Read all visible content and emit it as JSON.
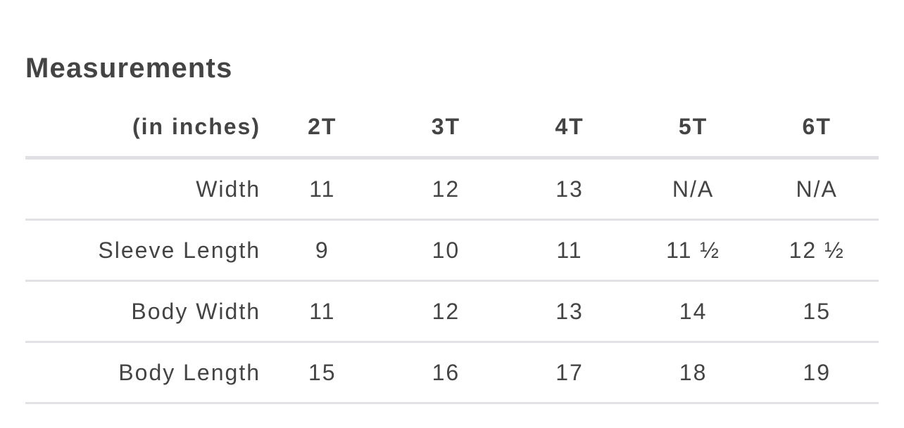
{
  "title": "Measurements",
  "table": {
    "headers": [
      "(in inches)",
      "2T",
      "3T",
      "4T",
      "5T",
      "6T"
    ],
    "rows": [
      {
        "label": "Width",
        "values": [
          "11",
          "12",
          "13",
          "N/A",
          "N/A"
        ]
      },
      {
        "label": "Sleeve Length",
        "values": [
          "9",
          "10",
          "11",
          "11 ½",
          "12 ½"
        ]
      },
      {
        "label": "Body Width",
        "values": [
          "11",
          "12",
          "13",
          "14",
          "15"
        ]
      },
      {
        "label": "Body Length",
        "values": [
          "15",
          "16",
          "17",
          "18",
          "19"
        ]
      }
    ]
  }
}
